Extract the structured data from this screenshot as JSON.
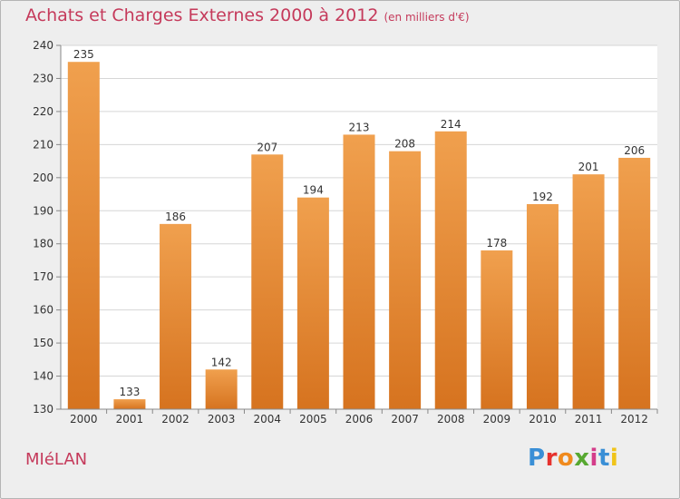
{
  "title": "Achats et Charges Externes 2000 à 2012",
  "subtitle": "(en milliers d'€)",
  "city": "MIéLAN",
  "logo": {
    "letters": [
      "P",
      "r",
      "o",
      "x",
      "i",
      "t",
      "i"
    ],
    "colors": [
      "#3a8fd6",
      "#e6322e",
      "#f08a1d",
      "#57a831",
      "#d43d8a",
      "#3a8fd6",
      "#f0c419"
    ]
  },
  "colors": {
    "bar": "#f0a04e",
    "bar_dark": "#d6731f",
    "title": "#c53a5b"
  },
  "chart_data": {
    "type": "bar",
    "categories": [
      "2000",
      "2001",
      "2002",
      "2003",
      "2004",
      "2005",
      "2006",
      "2007",
      "2008",
      "2009",
      "2010",
      "2011",
      "2012"
    ],
    "values": [
      235,
      133,
      186,
      142,
      207,
      194,
      213,
      208,
      214,
      178,
      192,
      201,
      206
    ],
    "ylim": [
      130,
      240
    ],
    "yticks": [
      130,
      140,
      150,
      160,
      170,
      180,
      190,
      200,
      210,
      220,
      230,
      240
    ],
    "grid": true
  }
}
